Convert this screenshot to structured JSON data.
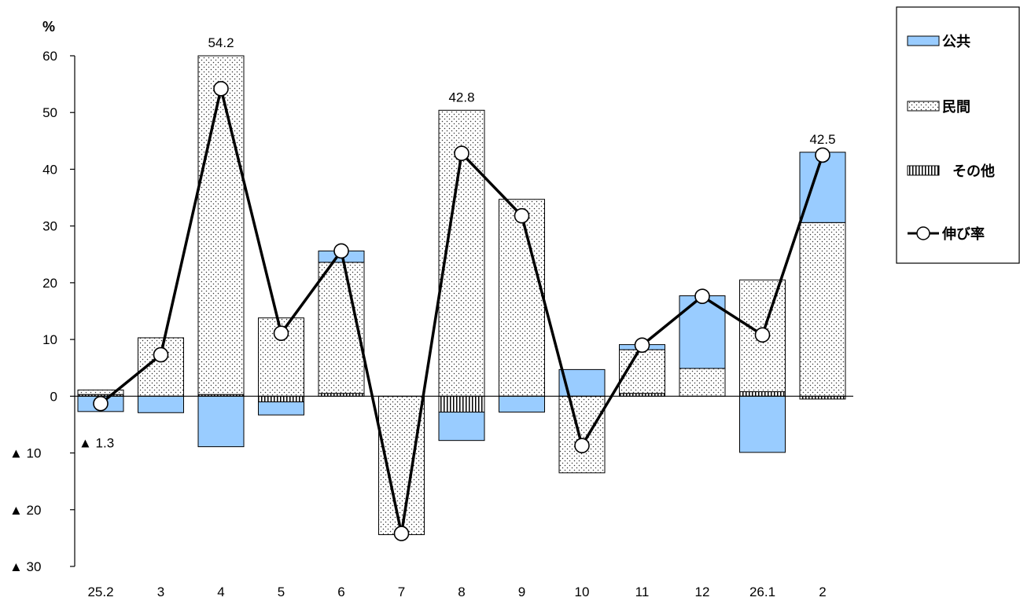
{
  "chart_data": {
    "type": "bar",
    "unit_label": "%",
    "categories": [
      "25.2",
      "3",
      "4",
      "5",
      "6",
      "7",
      "8",
      "9",
      "10",
      "11",
      "12",
      "26.1",
      "2"
    ],
    "series": [
      {
        "name": "公共",
        "kind": "stacked-bar",
        "color": "#99CCFF",
        "values": [
          -2.7,
          -2.9,
          -8.9,
          -2.3,
          2.0,
          0,
          -5.0,
          -2.8,
          4.7,
          0.9,
          12.8,
          -9.9,
          12.4
        ]
      },
      {
        "name": "民間",
        "kind": "stacked-bar",
        "pattern": "dots",
        "values": [
          0.8,
          10.3,
          60.0,
          13.8,
          23.1,
          -24.4,
          50.4,
          34.7,
          -13.5,
          7.7,
          4.9,
          19.7,
          30.6
        ]
      },
      {
        "name": "その他",
        "kind": "stacked-bar",
        "pattern": "vertical-lines",
        "values": [
          0.3,
          0,
          0.3,
          -1.0,
          0.5,
          0,
          -2.8,
          0,
          0,
          0.5,
          0,
          0.8,
          -0.5
        ]
      },
      {
        "name": "伸び率",
        "kind": "line",
        "color": "#000000",
        "values": [
          -1.3,
          7.3,
          54.2,
          11.1,
          25.6,
          -24.2,
          42.8,
          31.8,
          -8.7,
          9.0,
          17.6,
          10.8,
          42.5
        ]
      }
    ],
    "data_labels": [
      {
        "index": 0,
        "text": "▲ 1.3"
      },
      {
        "index": 2,
        "text": "54.2"
      },
      {
        "index": 6,
        "text": "42.8"
      },
      {
        "index": 12,
        "text": "42.5"
      }
    ],
    "y_ticks": [
      {
        "value": 60,
        "label": "60"
      },
      {
        "value": 50,
        "label": "50"
      },
      {
        "value": 40,
        "label": "40"
      },
      {
        "value": 30,
        "label": "30"
      },
      {
        "value": 20,
        "label": "20"
      },
      {
        "value": 10,
        "label": "10"
      },
      {
        "value": 0,
        "label": "0"
      },
      {
        "value": -10,
        "label": "▲ 10"
      },
      {
        "value": -20,
        "label": "▲ 20"
      },
      {
        "value": -30,
        "label": "▲ 30"
      }
    ],
    "ylim": [
      -30,
      60
    ],
    "grid": false,
    "legend_position": "right"
  }
}
